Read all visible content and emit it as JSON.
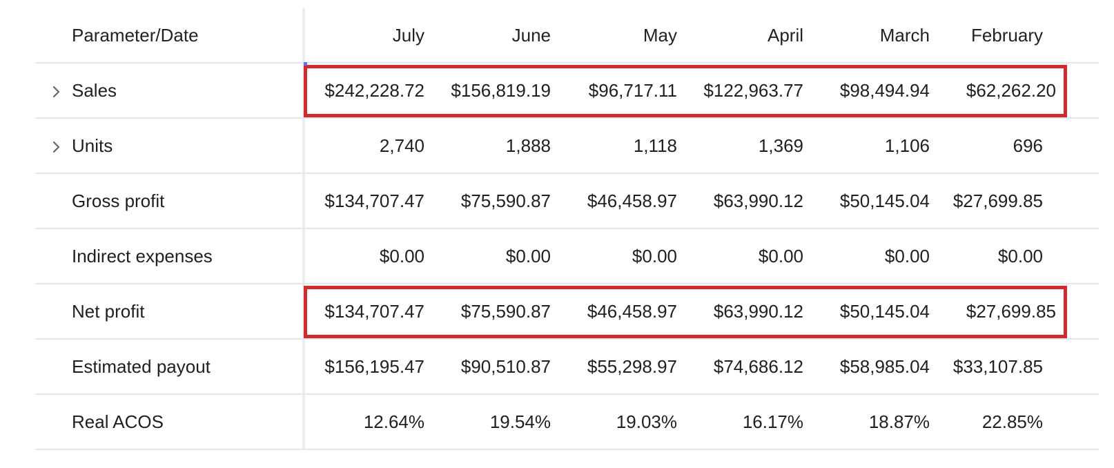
{
  "table": {
    "header": {
      "param_label": "Parameter/Date",
      "months": [
        "July",
        "June",
        "May",
        "April",
        "March",
        "February"
      ]
    },
    "rows": [
      {
        "label": "Sales",
        "expandable": true,
        "highlighted": true,
        "values": [
          "$242,228.72",
          "$156,819.19",
          "$96,717.11",
          "$122,963.77",
          "$98,494.94",
          "$62,262.20"
        ]
      },
      {
        "label": "Units",
        "expandable": true,
        "highlighted": false,
        "values": [
          "2,740",
          "1,888",
          "1,118",
          "1,369",
          "1,106",
          "696"
        ]
      },
      {
        "label": "Gross profit",
        "expandable": false,
        "highlighted": false,
        "values": [
          "$134,707.47",
          "$75,590.87",
          "$46,458.97",
          "$63,990.12",
          "$50,145.04",
          "$27,699.85"
        ]
      },
      {
        "label": "Indirect expenses",
        "expandable": false,
        "highlighted": false,
        "values": [
          "$0.00",
          "$0.00",
          "$0.00",
          "$0.00",
          "$0.00",
          "$0.00"
        ]
      },
      {
        "label": "Net profit",
        "expandable": false,
        "highlighted": true,
        "values": [
          "$134,707.47",
          "$75,590.87",
          "$46,458.97",
          "$63,990.12",
          "$50,145.04",
          "$27,699.85"
        ]
      },
      {
        "label": "Estimated payout",
        "expandable": false,
        "highlighted": false,
        "values": [
          "$156,195.47",
          "$90,510.87",
          "$55,298.97",
          "$74,686.12",
          "$58,985.04",
          "$33,107.85"
        ]
      },
      {
        "label": "Real ACOS",
        "expandable": false,
        "highlighted": false,
        "values": [
          "12.64%",
          "19.54%",
          "19.03%",
          "16.17%",
          "18.87%",
          "22.85%"
        ]
      }
    ]
  },
  "colors": {
    "highlight_border": "#d32a2f",
    "divider": "#ececec",
    "row_border": "#e6e6e6",
    "chevron": "#666666"
  },
  "icons": {
    "expand": "chevron-right-icon"
  }
}
